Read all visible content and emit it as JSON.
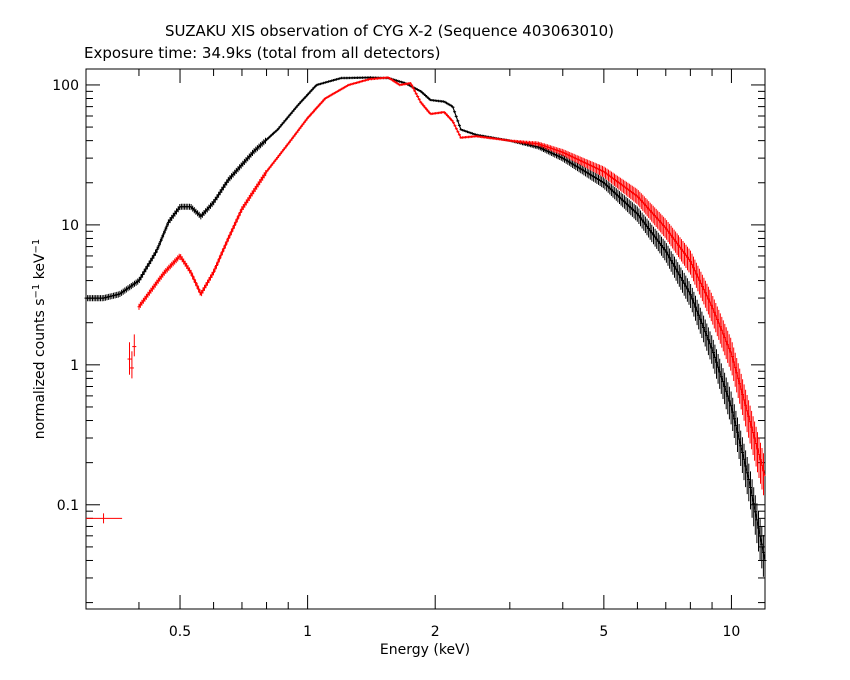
{
  "header": {
    "title": "SUZAKU XIS observation of CYG X-2 (Sequence 403063010)",
    "subtitle": "Exposure time: 34.9ks (total from all detectors)"
  },
  "chart_data": {
    "type": "line",
    "xlabel": "Energy (keV)",
    "ylabel_main": "normalized counts s",
    "ylabel_mid": " keV",
    "ylabel_sup": "−1",
    "x_scale": "log",
    "y_scale": "log",
    "xlim": [
      0.3,
      12
    ],
    "ylim": [
      0.018,
      130
    ],
    "x_ticks": [
      {
        "value": 0.5,
        "label": "0.5"
      },
      {
        "value": 1,
        "label": "1"
      },
      {
        "value": 2,
        "label": "2"
      },
      {
        "value": 5,
        "label": "5"
      },
      {
        "value": 10,
        "label": "10"
      }
    ],
    "y_ticks": [
      {
        "value": 0.1,
        "label": "0.1"
      },
      {
        "value": 1,
        "label": "1"
      },
      {
        "value": 10,
        "label": "10"
      },
      {
        "value": 100,
        "label": "100"
      }
    ],
    "grid": false,
    "legend": "none",
    "series": [
      {
        "color": "#000000",
        "points": [
          [
            0.3,
            3.0
          ],
          [
            0.33,
            3.0
          ],
          [
            0.36,
            3.2
          ],
          [
            0.4,
            4.0
          ],
          [
            0.44,
            6.5
          ],
          [
            0.47,
            10.5
          ],
          [
            0.5,
            13.5
          ],
          [
            0.53,
            13.5
          ],
          [
            0.56,
            11.5
          ],
          [
            0.6,
            14.5
          ],
          [
            0.65,
            21
          ],
          [
            0.75,
            34
          ],
          [
            0.85,
            48
          ],
          [
            0.95,
            72
          ],
          [
            1.05,
            100
          ],
          [
            1.2,
            112
          ],
          [
            1.4,
            113
          ],
          [
            1.55,
            112
          ],
          [
            1.7,
            103
          ],
          [
            1.85,
            90
          ],
          [
            1.95,
            78
          ],
          [
            2.1,
            76
          ],
          [
            2.2,
            70
          ],
          [
            2.3,
            48
          ],
          [
            2.5,
            44
          ],
          [
            3.0,
            40
          ],
          [
            3.5,
            36
          ],
          [
            4.0,
            30
          ],
          [
            5.0,
            20
          ],
          [
            6.0,
            12
          ],
          [
            7.0,
            6.5
          ],
          [
            8.0,
            3.2
          ],
          [
            9.0,
            1.3
          ],
          [
            10.0,
            0.5
          ],
          [
            11.0,
            0.15
          ],
          [
            12.0,
            0.04
          ]
        ]
      },
      {
        "color": "#ff0000",
        "points": [
          [
            0.4,
            2.6
          ],
          [
            0.43,
            3.5
          ],
          [
            0.46,
            4.6
          ],
          [
            0.5,
            6.0
          ],
          [
            0.53,
            4.6
          ],
          [
            0.56,
            3.2
          ],
          [
            0.6,
            4.6
          ],
          [
            0.65,
            8.0
          ],
          [
            0.7,
            13
          ],
          [
            0.8,
            24
          ],
          [
            0.9,
            38
          ],
          [
            1.0,
            58
          ],
          [
            1.1,
            80
          ],
          [
            1.25,
            100
          ],
          [
            1.4,
            110
          ],
          [
            1.55,
            113
          ],
          [
            1.65,
            100
          ],
          [
            1.75,
            103
          ],
          [
            1.85,
            75
          ],
          [
            1.95,
            62
          ],
          [
            2.1,
            64
          ],
          [
            2.2,
            55
          ],
          [
            2.3,
            42
          ],
          [
            2.5,
            43
          ],
          [
            3.0,
            40
          ],
          [
            3.5,
            38
          ],
          [
            4.0,
            33
          ],
          [
            5.0,
            24
          ],
          [
            6.0,
            16
          ],
          [
            7.0,
            9.5
          ],
          [
            8.0,
            5.5
          ],
          [
            9.0,
            2.6
          ],
          [
            10.0,
            1.2
          ],
          [
            11.0,
            0.42
          ],
          [
            12.0,
            0.16
          ]
        ]
      }
    ],
    "red_low_points": [
      {
        "x": 0.38,
        "y": 1.1,
        "yerr": [
          0.25,
          0.35
        ]
      },
      {
        "x": 0.385,
        "y": 0.95,
        "yerr": [
          0.15,
          0.3
        ]
      },
      {
        "x": 0.39,
        "y": 1.35,
        "yerr": [
          0.2,
          0.3
        ]
      }
    ],
    "red_isolated_point": {
      "x": 0.33,
      "y": 0.08,
      "xerr": [
        0.3,
        0.365
      ]
    }
  }
}
